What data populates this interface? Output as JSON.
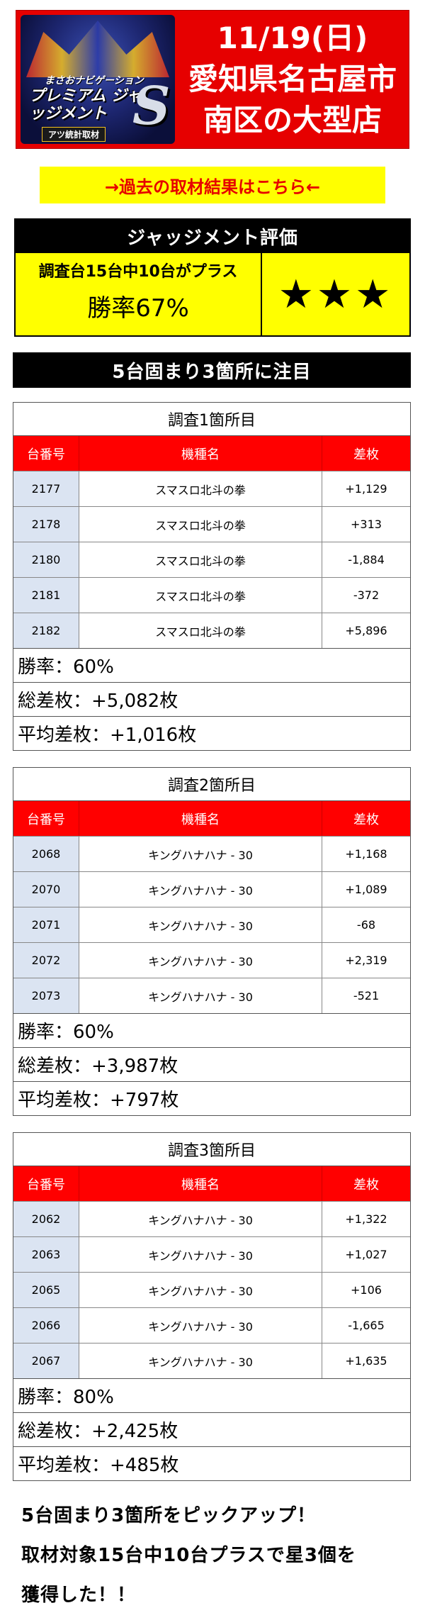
{
  "header": {
    "logo_sub": "まさおナビゲーション",
    "logo_main": "プレミアム ジャッジメント",
    "logo_letter": "S",
    "logo_tag": "アツ統計取材",
    "date": "11/19(日)",
    "place_line1": "愛知県名古屋市",
    "place_line2": "南区の大型店"
  },
  "link_bar": {
    "label": "→過去の取材結果はこちら←"
  },
  "judgement": {
    "title": "ジャッジメント評価",
    "summary": "調査台15台中10台がプラス",
    "win_rate": "勝率67%",
    "stars": "★★★"
  },
  "section_header": "5台固まり3箇所に注目",
  "columns": {
    "machine_no": "台番号",
    "model": "機種名",
    "diff": "差枚"
  },
  "surveys": [
    {
      "title": "調査1箇所目",
      "rows": [
        {
          "no": "2177",
          "model": "スマスロ北斗の拳",
          "diff": "+1,129"
        },
        {
          "no": "2178",
          "model": "スマスロ北斗の拳",
          "diff": "+313"
        },
        {
          "no": "2180",
          "model": "スマスロ北斗の拳",
          "diff": "-1,884"
        },
        {
          "no": "2181",
          "model": "スマスロ北斗の拳",
          "diff": "-372"
        },
        {
          "no": "2182",
          "model": "スマスロ北斗の拳",
          "diff": "+5,896"
        }
      ],
      "win_rate": "勝率：60%",
      "total": "総差枚：+5,082枚",
      "average": "平均差枚：+1,016枚"
    },
    {
      "title": "調査2箇所目",
      "rows": [
        {
          "no": "2068",
          "model": "キングハナハナ - 30",
          "diff": "+1,168"
        },
        {
          "no": "2070",
          "model": "キングハナハナ - 30",
          "diff": "+1,089"
        },
        {
          "no": "2071",
          "model": "キングハナハナ - 30",
          "diff": "-68"
        },
        {
          "no": "2072",
          "model": "キングハナハナ - 30",
          "diff": "+2,319"
        },
        {
          "no": "2073",
          "model": "キングハナハナ - 30",
          "diff": "-521"
        }
      ],
      "win_rate": "勝率：60%",
      "total": "総差枚：+3,987枚",
      "average": "平均差枚：+797枚"
    },
    {
      "title": "調査3箇所目",
      "rows": [
        {
          "no": "2062",
          "model": "キングハナハナ - 30",
          "diff": "+1,322"
        },
        {
          "no": "2063",
          "model": "キングハナハナ - 30",
          "diff": "+1,027"
        },
        {
          "no": "2065",
          "model": "キングハナハナ - 30",
          "diff": "+106"
        },
        {
          "no": "2066",
          "model": "キングハナハナ - 30",
          "diff": "-1,665"
        },
        {
          "no": "2067",
          "model": "キングハナハナ - 30",
          "diff": "+1,635"
        }
      ],
      "win_rate": "勝率：80%",
      "total": "総差枚：+2,425枚",
      "average": "平均差枚：+485枚"
    }
  ],
  "summary": {
    "line1": "5台固まり3箇所をピックアップ！",
    "line2": "取材対象15台中10台プラスで星3個を",
    "line3": "獲得した！！"
  }
}
